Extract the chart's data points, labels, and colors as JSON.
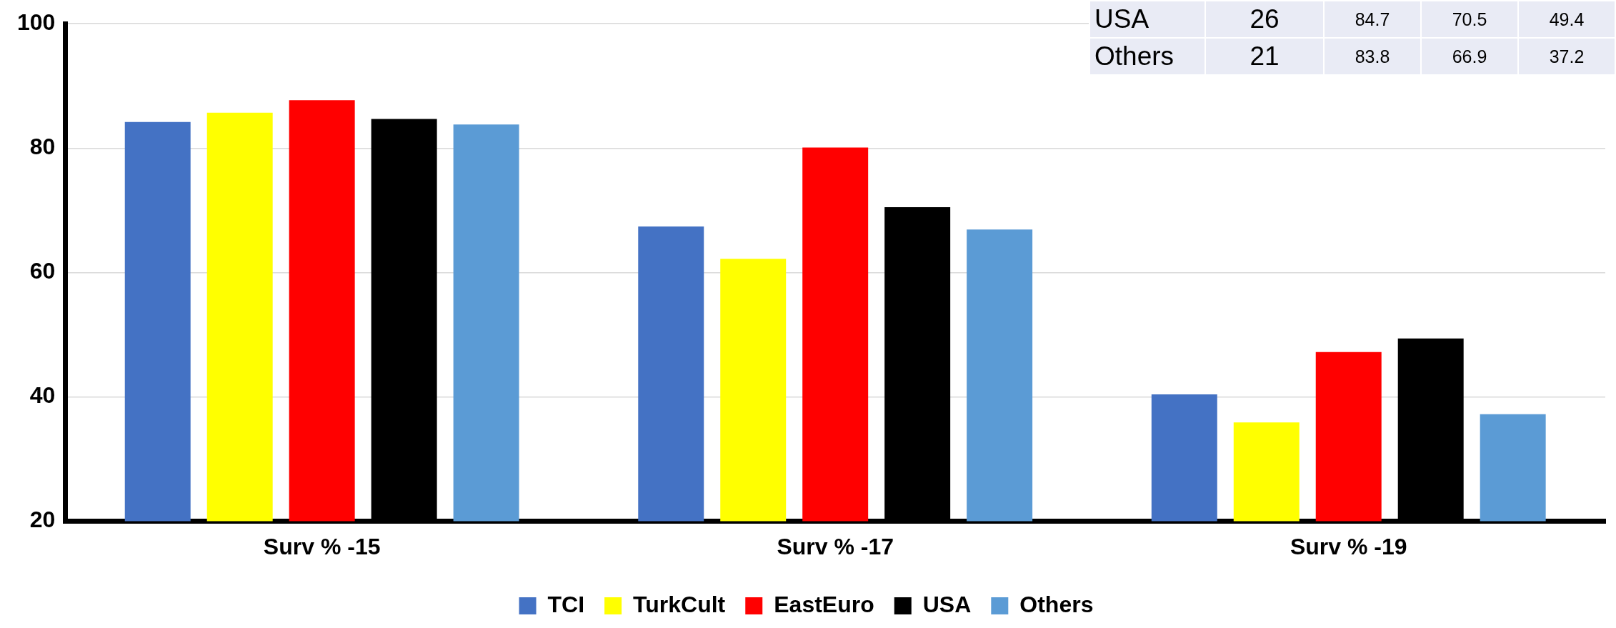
{
  "chart_data": [
    {
      "type": "bar",
      "categories": [
        "Surv % -15",
        "Surv % -17",
        "Surv % -19"
      ],
      "series": [
        {
          "name": "TCI",
          "color": "#4472c4",
          "values": [
            84.2,
            67.4,
            40.4
          ]
        },
        {
          "name": "TurkCult",
          "color": "#ffff00",
          "values": [
            85.7,
            62.2,
            35.9
          ]
        },
        {
          "name": "EastEuro",
          "color": "#ff0000",
          "values": [
            87.7,
            80.1,
            47.2
          ]
        },
        {
          "name": "USA",
          "color": "#000000",
          "values": [
            84.7,
            70.5,
            49.4
          ]
        },
        {
          "name": "Others",
          "color": "#5b9bd5",
          "values": [
            83.8,
            66.9,
            37.2
          ]
        }
      ],
      "ylim": [
        20,
        100
      ],
      "yticks": [
        20,
        40,
        60,
        80,
        100
      ],
      "grid": "y",
      "legend": "bottom"
    },
    {
      "type": "other",
      "annotations": [
        "USA",
        "26",
        "84.7",
        "70.5",
        "49.4",
        "Others",
        "21",
        "83.8",
        "66.9",
        "37.2"
      ]
    }
  ]
}
